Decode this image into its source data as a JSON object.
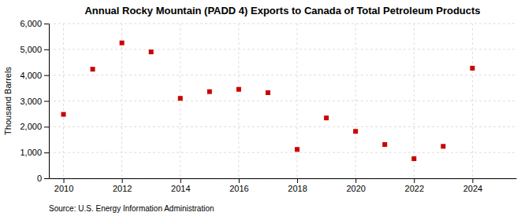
{
  "chart_data": {
    "type": "scatter",
    "title": "Annual Rocky Mountain (PADD 4) Exports to Canada of Total Petroleum Products",
    "y_label": "Thousand Barrels",
    "annotations": [
      "Source: U.S. Energy Information Administration"
    ],
    "x": [
      2010,
      2011,
      2012,
      2013,
      2014,
      2015,
      2016,
      2017,
      2018,
      2019,
      2020,
      2021,
      2022,
      2023,
      2024
    ],
    "values": [
      2480,
      4230,
      5250,
      4900,
      3100,
      3360,
      3450,
      3320,
      1120,
      2340,
      1820,
      1310,
      760,
      1240,
      4270
    ],
    "color": "#cc0000",
    "marker": "square",
    "xlim": [
      2009.5,
      2025.5
    ],
    "xticks": [
      2010,
      2012,
      2014,
      2016,
      2018,
      2020,
      2022,
      2024
    ],
    "ylim": [
      0,
      6000
    ],
    "yticks": [
      0,
      {
        "value": 1000,
        "label": "1,000"
      },
      {
        "value": 2000,
        "label": "2,000"
      },
      {
        "value": 3000,
        "label": "3,000"
      },
      {
        "value": 4000,
        "label": "4,000"
      },
      {
        "value": 5000,
        "label": "5,000"
      },
      {
        "value": 6000,
        "label": "6,000"
      }
    ],
    "grid": true
  }
}
